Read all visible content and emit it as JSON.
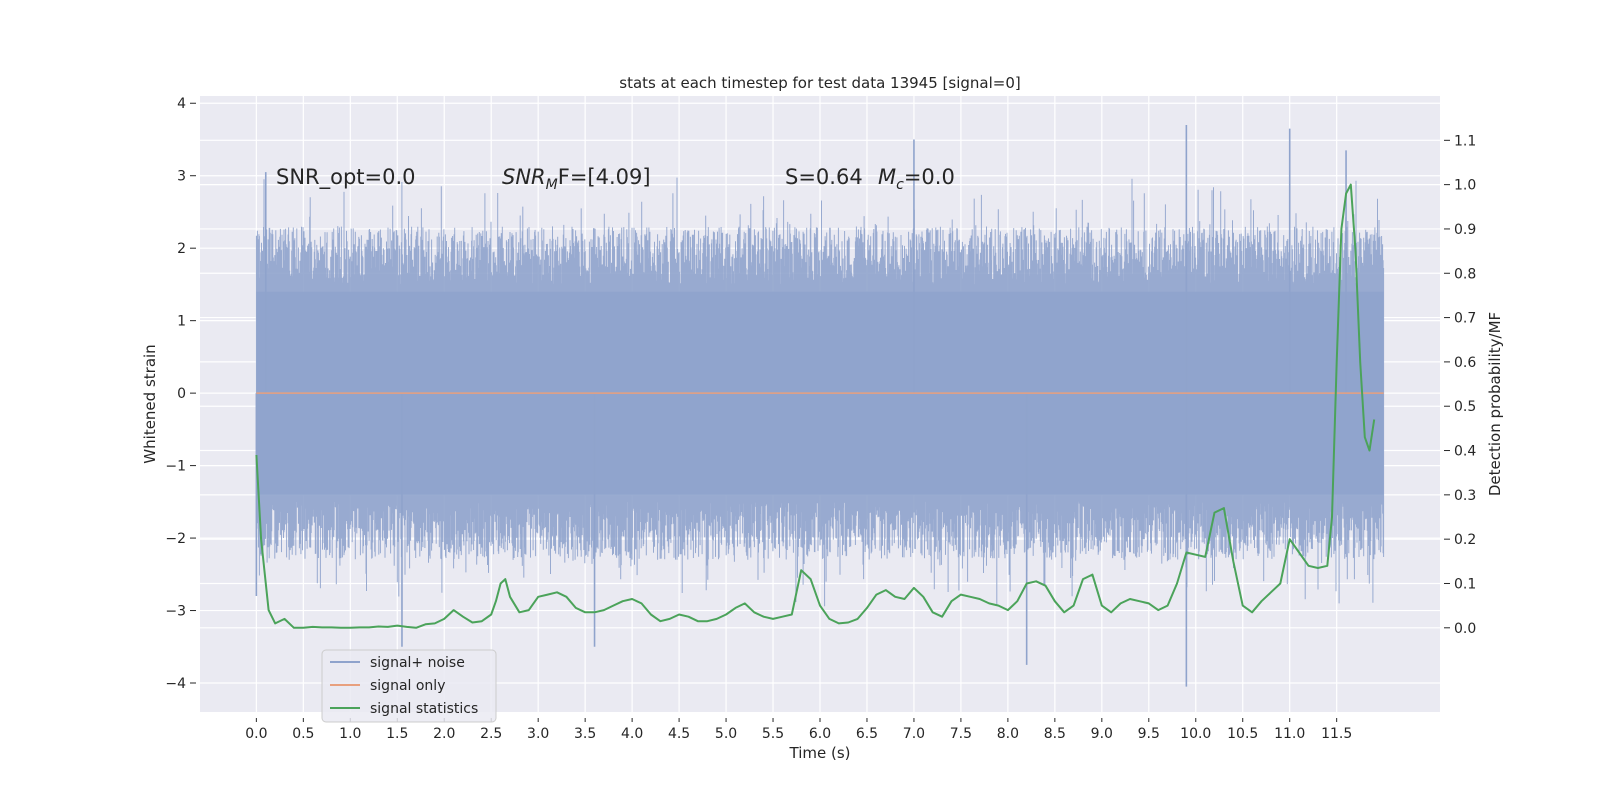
{
  "chart_data": {
    "type": "line",
    "title": "stats at each timestep for test data 13945 [signal=0]",
    "xlabel": "Time (s)",
    "ylabel_left": "Whitened strain",
    "ylabel_right": "Detection probability/MF",
    "xlim": [
      -0.6,
      12.6
    ],
    "ylim_left": [
      -4.4,
      4.1
    ],
    "ylim_right": [
      -0.19,
      1.2
    ],
    "x_ticks": [
      0.0,
      0.5,
      1.0,
      1.5,
      2.0,
      2.5,
      3.0,
      3.5,
      4.0,
      4.5,
      5.0,
      5.5,
      6.0,
      6.5,
      7.0,
      7.5,
      8.0,
      8.5,
      9.0,
      9.5,
      10.0,
      10.5,
      11.0,
      11.5
    ],
    "x_tick_labels": [
      "0.0",
      "0.5",
      "1.0",
      "1.5",
      "2.0",
      "2.5",
      "3.0",
      "3.5",
      "4.0",
      "4.5",
      "5.0",
      "5.5",
      "6.0",
      "6.5",
      "7.0",
      "7.5",
      "8.0",
      "8.5",
      "9.0",
      "9.5",
      "10.0",
      "10.5",
      "11.0",
      "11.5"
    ],
    "y_left_ticks": [
      4,
      3,
      2,
      1,
      0,
      -1,
      -2,
      -3,
      -4
    ],
    "y_left_tick_labels": [
      "4",
      "3",
      "2",
      "1",
      "0",
      "−1",
      "−2",
      "−3",
      "−4"
    ],
    "y_right_ticks": [
      1.1,
      1.0,
      0.9,
      0.8,
      0.7,
      0.6,
      0.5,
      0.4,
      0.3,
      0.2,
      0.1,
      0.0
    ],
    "y_right_tick_labels": [
      "1.1",
      "1.0",
      "0.9",
      "0.8",
      "0.7",
      "0.6",
      "0.5",
      "0.4",
      "0.3",
      "0.2",
      "0.1",
      "0.0"
    ],
    "grid": true,
    "legend_position": "lower-left",
    "series": [
      {
        "name": "signal+ noise",
        "axis": "left",
        "color": "#8fa3cc",
        "x_range": [
          0.0,
          12.0
        ],
        "typical_envelope": [
          -2.2,
          2.2
        ],
        "extremes": [
          {
            "x": 0.0,
            "y": -2.8
          },
          {
            "x": 0.1,
            "y": 3.05
          },
          {
            "x": 1.55,
            "y": -3.5
          },
          {
            "x": 3.6,
            "y": -3.5
          },
          {
            "x": 7.0,
            "y": 3.5
          },
          {
            "x": 8.2,
            "y": -3.75
          },
          {
            "x": 9.9,
            "y": 3.7
          },
          {
            "x": 9.9,
            "y": -4.05
          },
          {
            "x": 11.0,
            "y": 3.65
          },
          {
            "x": 11.6,
            "y": 3.35
          }
        ]
      },
      {
        "name": "signal only",
        "axis": "left",
        "color": "#e8a07e",
        "x": [
          0.0,
          12.0
        ],
        "y": [
          0.0,
          0.0
        ]
      },
      {
        "name": "signal statistics",
        "axis": "right",
        "color": "#4ba35a",
        "x": [
          0.0,
          0.05,
          0.13,
          0.2,
          0.3,
          0.4,
          0.5,
          0.6,
          0.7,
          0.8,
          0.9,
          1.0,
          1.1,
          1.2,
          1.3,
          1.4,
          1.5,
          1.6,
          1.7,
          1.8,
          1.9,
          2.0,
          2.1,
          2.2,
          2.3,
          2.4,
          2.5,
          2.55,
          2.6,
          2.65,
          2.7,
          2.8,
          2.9,
          3.0,
          3.1,
          3.2,
          3.3,
          3.4,
          3.5,
          3.6,
          3.7,
          3.8,
          3.9,
          4.0,
          4.1,
          4.2,
          4.3,
          4.4,
          4.5,
          4.6,
          4.7,
          4.8,
          4.9,
          5.0,
          5.1,
          5.2,
          5.3,
          5.4,
          5.5,
          5.6,
          5.7,
          5.8,
          5.9,
          6.0,
          6.1,
          6.2,
          6.3,
          6.4,
          6.5,
          6.6,
          6.7,
          6.8,
          6.9,
          7.0,
          7.1,
          7.2,
          7.3,
          7.4,
          7.5,
          7.6,
          7.7,
          7.8,
          7.9,
          8.0,
          8.1,
          8.2,
          8.3,
          8.4,
          8.5,
          8.6,
          8.7,
          8.8,
          8.9,
          9.0,
          9.1,
          9.2,
          9.3,
          9.4,
          9.5,
          9.6,
          9.7,
          9.8,
          9.9,
          10.0,
          10.1,
          10.2,
          10.3,
          10.4,
          10.5,
          10.6,
          10.7,
          10.8,
          10.9,
          11.0,
          11.1,
          11.2,
          11.3,
          11.4,
          11.45,
          11.5,
          11.55,
          11.6,
          11.65,
          11.7,
          11.75,
          11.8,
          11.85,
          11.9
        ],
        "y": [
          0.39,
          0.2,
          0.04,
          0.01,
          0.02,
          0.0,
          0.0,
          0.002,
          0.001,
          0.001,
          0.0,
          0.0,
          0.001,
          0.001,
          0.003,
          0.002,
          0.005,
          0.002,
          0.0,
          0.008,
          0.01,
          0.02,
          0.04,
          0.025,
          0.012,
          0.015,
          0.03,
          0.06,
          0.1,
          0.11,
          0.07,
          0.035,
          0.04,
          0.07,
          0.075,
          0.08,
          0.07,
          0.045,
          0.035,
          0.035,
          0.04,
          0.05,
          0.06,
          0.065,
          0.055,
          0.03,
          0.015,
          0.02,
          0.03,
          0.025,
          0.015,
          0.015,
          0.02,
          0.03,
          0.045,
          0.055,
          0.035,
          0.025,
          0.02,
          0.025,
          0.03,
          0.13,
          0.11,
          0.05,
          0.02,
          0.01,
          0.012,
          0.02,
          0.045,
          0.075,
          0.085,
          0.07,
          0.065,
          0.09,
          0.07,
          0.035,
          0.025,
          0.06,
          0.075,
          0.07,
          0.065,
          0.055,
          0.05,
          0.04,
          0.06,
          0.1,
          0.105,
          0.095,
          0.06,
          0.035,
          0.05,
          0.11,
          0.12,
          0.05,
          0.035,
          0.055,
          0.065,
          0.06,
          0.055,
          0.04,
          0.05,
          0.1,
          0.17,
          0.165,
          0.16,
          0.26,
          0.27,
          0.15,
          0.05,
          0.035,
          0.06,
          0.08,
          0.1,
          0.2,
          0.17,
          0.14,
          0.135,
          0.14,
          0.25,
          0.6,
          0.9,
          0.98,
          1.0,
          0.85,
          0.6,
          0.43,
          0.4,
          0.47
        ]
      }
    ],
    "annotations": [
      {
        "text": "SNR_opt=0.0",
        "x": 0.2,
        "y": 3.0
      },
      {
        "text": "SNR",
        "sub": "M",
        "after": "F=[4.09]",
        "italic_prefix": "SNR",
        "x": 2.6,
        "y": 3.0
      },
      {
        "text": "S=0.64",
        "x": 5.6,
        "y": 3.0
      },
      {
        "text": "M",
        "sub": "c",
        "after": "=0.0",
        "x": 6.6,
        "y": 3.0
      }
    ]
  }
}
